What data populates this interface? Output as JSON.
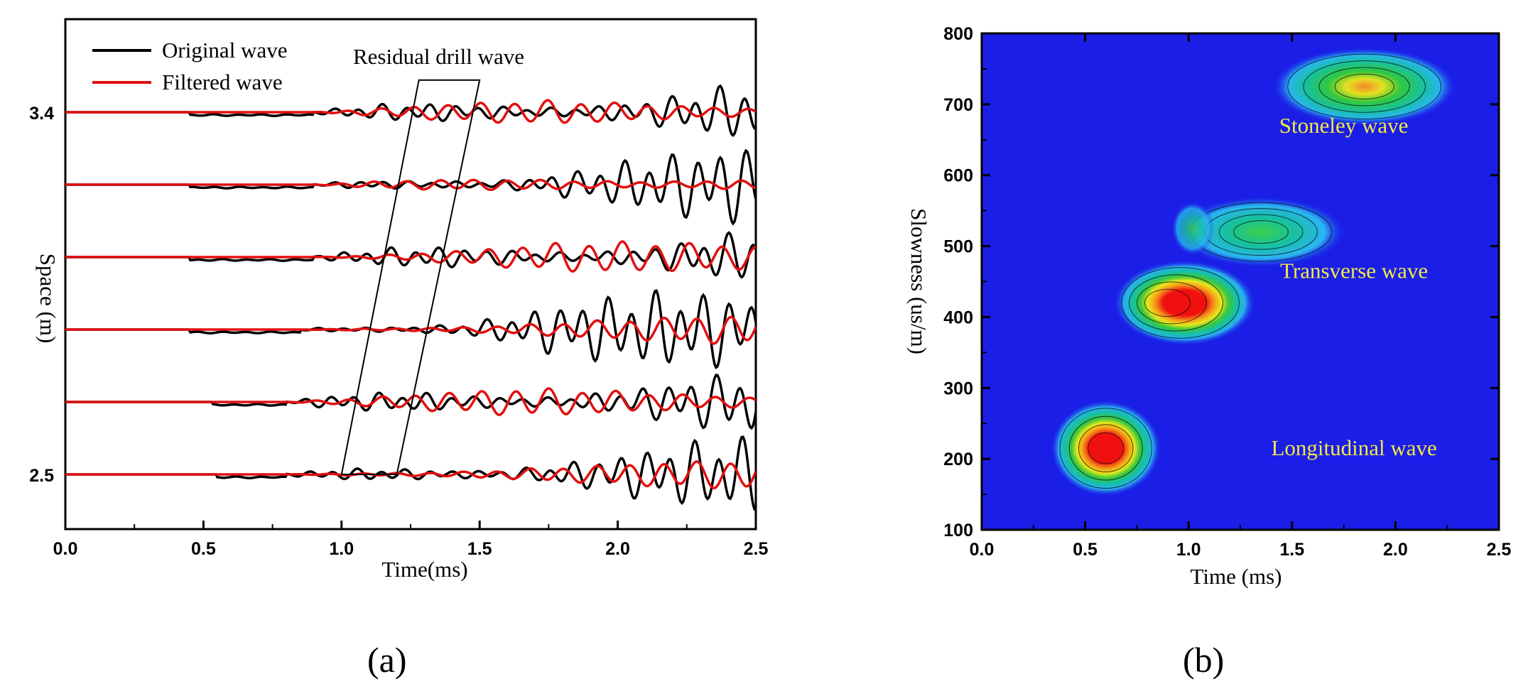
{
  "captions": {
    "a": "(a)",
    "b": "(b)"
  },
  "colors": {
    "original": "#000000",
    "filtered": "#e01010",
    "map_background": "#1a1ee6",
    "annotation": "#f2e84a"
  },
  "chart_data": [
    {
      "type": "line",
      "panel": "a",
      "title": "",
      "xlabel": "Time(ms)",
      "ylabel": "Space (m)",
      "xlim": [
        0.0,
        2.5
      ],
      "x_ticks": [
        "0.0",
        "0.5",
        "1.0",
        "1.5",
        "2.0",
        "2.5"
      ],
      "y_tick_labels": [
        "3.4",
        "2.5"
      ],
      "trace_baselines_m": [
        3.4,
        3.22,
        3.04,
        2.86,
        2.68,
        2.5
      ],
      "first_arrival_ms": [
        0.9,
        0.9,
        0.9,
        0.85,
        0.8,
        0.8
      ],
      "series": [
        {
          "name": "Original wave"
        },
        {
          "name": "Filtered wave"
        }
      ],
      "annotations": [
        {
          "text": "Residual drill wave",
          "box_time_ms": [
            [
              1.0,
              2.5
            ],
            [
              1.2,
              2.5
            ],
            [
              1.5,
              3.48
            ],
            [
              1.28,
              3.48
            ]
          ]
        }
      ]
    },
    {
      "type": "heatmap",
      "panel": "b",
      "title": "",
      "xlabel": "Time (ms)",
      "ylabel": "Slowness (us/m)",
      "xlim": [
        0.0,
        2.5
      ],
      "ylim": [
        100,
        800
      ],
      "x_ticks": [
        "0.0",
        "0.5",
        "1.0",
        "1.5",
        "2.0",
        "2.5"
      ],
      "y_ticks": [
        "100",
        "200",
        "300",
        "400",
        "500",
        "600",
        "700",
        "800"
      ],
      "peaks": [
        {
          "label": "Longitudinal wave",
          "time_ms": 0.6,
          "slowness": 215,
          "intensity": 1.0
        },
        {
          "label": "Transverse wave",
          "time_ms": 0.85,
          "slowness": 420,
          "intensity": 1.0
        },
        {
          "label": "",
          "time_ms": 1.35,
          "slowness": 520,
          "intensity": 0.5
        },
        {
          "label": "Stoneley wave",
          "time_ms": 1.85,
          "slowness": 725,
          "intensity": 0.75
        }
      ],
      "annotations": [
        {
          "text": "Stoneley wave",
          "time_ms": 1.75,
          "slowness": 660
        },
        {
          "text": "Transverse wave",
          "time_ms": 1.8,
          "slowness": 455
        },
        {
          "text": "Longitudinal wave",
          "time_ms": 1.8,
          "slowness": 205
        }
      ]
    }
  ]
}
